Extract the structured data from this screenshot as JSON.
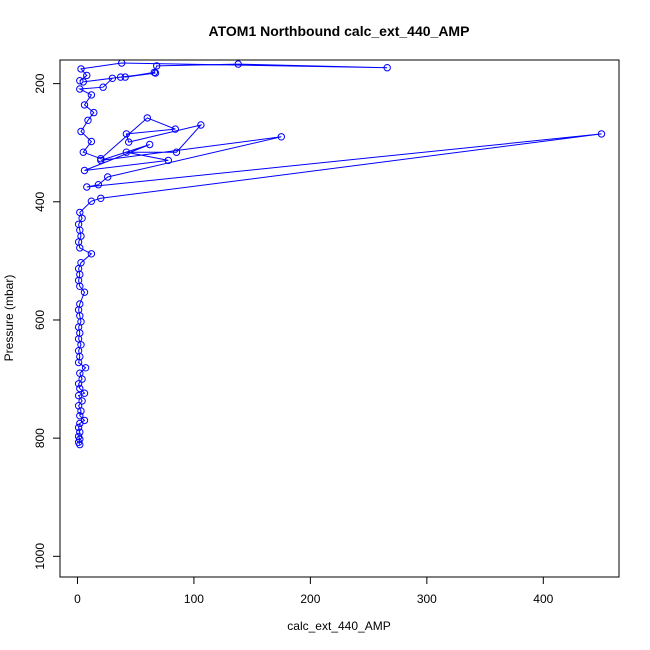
{
  "chart_data": {
    "type": "line",
    "title": "ATOM1 Northbound calc_ext_440_AMP",
    "xlabel": "calc_ext_440_AMP",
    "ylabel": "Pressure (mbar)",
    "xlim": [
      -15,
      465
    ],
    "ylim": [
      1035,
      160
    ],
    "y_reversed": true,
    "x_ticks": [
      0,
      100,
      200,
      300,
      400
    ],
    "y_ticks": [
      200,
      400,
      600,
      800,
      1000
    ],
    "grid": false,
    "legend": "none",
    "colors": {
      "series": "#0000ff",
      "axis": "#000000",
      "background": "#ffffff"
    },
    "series": [
      {
        "marker": "open-circle",
        "points": [
          [
            2,
            811
          ],
          [
            1,
            807
          ],
          [
            2,
            802
          ],
          [
            1,
            797
          ],
          [
            2,
            790
          ],
          [
            1,
            782
          ],
          [
            2,
            775
          ],
          [
            6,
            770
          ],
          [
            2,
            762
          ],
          [
            3,
            754
          ],
          [
            1,
            745
          ],
          [
            4,
            737
          ],
          [
            1,
            728
          ],
          [
            6,
            724
          ],
          [
            2,
            716
          ],
          [
            1,
            708
          ],
          [
            4,
            700
          ],
          [
            2,
            690
          ],
          [
            7,
            681
          ],
          [
            1,
            672
          ],
          [
            2,
            662
          ],
          [
            1,
            652
          ],
          [
            3,
            642
          ],
          [
            1,
            632
          ],
          [
            2,
            622
          ],
          [
            1,
            612
          ],
          [
            3,
            603
          ],
          [
            2,
            593
          ],
          [
            1,
            583
          ],
          [
            2,
            573
          ],
          [
            6,
            553
          ],
          [
            2,
            543
          ],
          [
            1,
            533
          ],
          [
            2,
            523
          ],
          [
            1,
            513
          ],
          [
            3,
            503
          ],
          [
            12,
            488
          ],
          [
            2,
            478
          ],
          [
            1,
            468
          ],
          [
            3,
            458
          ],
          [
            2,
            448
          ],
          [
            1,
            438
          ],
          [
            4,
            428
          ],
          [
            2,
            418
          ],
          [
            12,
            399
          ],
          [
            20,
            394
          ],
          [
            450,
            285
          ],
          [
            8,
            375
          ],
          [
            18,
            371
          ],
          [
            26,
            358
          ],
          [
            175,
            290
          ],
          [
            20,
            330
          ],
          [
            62,
            303
          ],
          [
            6,
            347
          ],
          [
            78,
            330
          ],
          [
            42,
            316
          ],
          [
            85,
            316
          ],
          [
            106,
            270
          ],
          [
            44,
            299
          ],
          [
            42,
            285
          ],
          [
            84,
            277
          ],
          [
            60,
            258
          ],
          [
            20,
            327
          ],
          [
            5,
            316
          ],
          [
            12,
            298
          ],
          [
            3,
            281
          ],
          [
            9,
            262
          ],
          [
            14,
            249
          ],
          [
            6,
            236
          ],
          [
            12,
            219
          ],
          [
            2,
            209
          ],
          [
            22,
            206
          ],
          [
            30,
            191
          ],
          [
            5,
            197
          ],
          [
            37,
            189
          ],
          [
            67,
            182
          ],
          [
            41,
            189
          ],
          [
            66,
            181
          ],
          [
            68,
            170
          ],
          [
            138,
            167
          ],
          [
            266,
            173
          ],
          [
            38,
            165
          ],
          [
            3,
            175
          ],
          [
            8,
            186
          ],
          [
            2,
            195
          ]
        ]
      }
    ]
  }
}
